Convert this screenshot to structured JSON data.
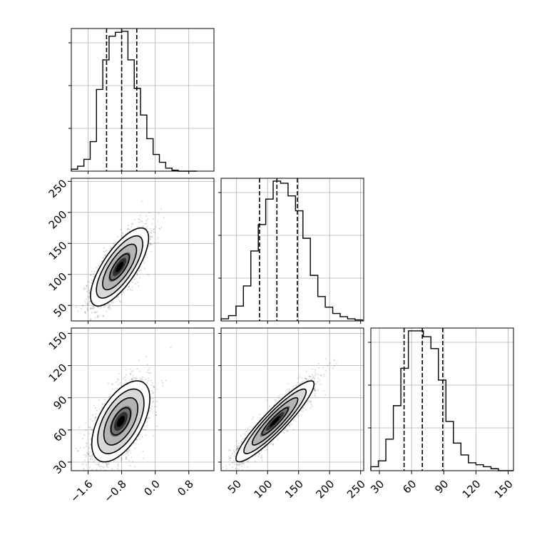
{
  "chart_data": {
    "type": "corner",
    "grid": true,
    "variables": [
      {
        "range": [
          -2.0,
          1.4
        ],
        "ticks": [
          -1.6,
          -0.8,
          0.0,
          0.8
        ],
        "tick_labels": [
          "−1.6",
          "−0.8",
          "0.0",
          "0.8"
        ],
        "quantiles": [
          -1.16,
          -0.8,
          -0.44
        ]
      },
      {
        "range": [
          25,
          255
        ],
        "ticks": [
          50,
          100,
          150,
          200,
          250
        ],
        "tick_labels": [
          "50",
          "100",
          "150",
          "200",
          "250"
        ],
        "quantiles": [
          87,
          115,
          148
        ]
      },
      {
        "range": [
          22,
          155
        ],
        "ticks": [
          30,
          60,
          90,
          120,
          150
        ],
        "tick_labels": [
          "30",
          "60",
          "90",
          "120",
          "150"
        ],
        "quantiles": [
          53,
          70,
          89
        ]
      }
    ],
    "histograms": [
      {
        "bins": [
          -2.0,
          -1.85,
          -1.7,
          -1.55,
          -1.4,
          -1.25,
          -1.1,
          -0.95,
          -0.8,
          -0.65,
          -0.5,
          -0.35,
          -0.2,
          -0.05,
          0.1,
          0.25,
          0.4,
          0.55,
          0.7,
          0.85,
          1.0
        ],
        "counts": [
          2,
          5,
          12,
          30,
          83,
          113,
          137,
          141,
          142,
          113,
          84,
          57,
          33,
          17,
          9,
          3,
          1,
          0,
          0,
          0
        ]
      },
      {
        "bins": [
          25,
          37,
          49,
          61,
          73,
          85,
          97,
          109,
          121,
          133,
          145,
          157,
          169,
          181,
          193,
          205,
          217,
          229,
          241,
          253
        ],
        "counts": [
          2,
          5,
          14,
          33,
          66,
          91,
          115,
          132,
          130,
          118,
          104,
          78,
          43,
          23,
          13,
          7,
          4,
          2,
          1
        ]
      },
      {
        "bins": [
          22,
          29,
          36,
          43,
          50,
          57,
          64,
          71,
          78,
          85,
          92,
          99,
          106,
          113,
          120,
          127,
          134,
          141,
          148,
          155
        ],
        "counts": [
          2,
          5,
          16,
          33,
          52,
          71,
          71,
          68,
          62,
          46,
          25,
          14,
          8,
          4,
          3,
          2,
          1,
          0,
          0
        ]
      }
    ],
    "pairs": [
      {
        "x_var": 0,
        "y_var": 1,
        "center": [
          -0.85,
          112
        ],
        "sd": [
          0.33,
          30
        ],
        "corr": 0.74
      },
      {
        "x_var": 0,
        "y_var": 2,
        "center": [
          -0.82,
          68
        ],
        "sd": [
          0.33,
          18
        ],
        "corr": 0.56
      },
      {
        "x_var": 1,
        "y_var": 2,
        "center": [
          112,
          68
        ],
        "sd": [
          30,
          18
        ],
        "corr": 0.92
      }
    ]
  }
}
